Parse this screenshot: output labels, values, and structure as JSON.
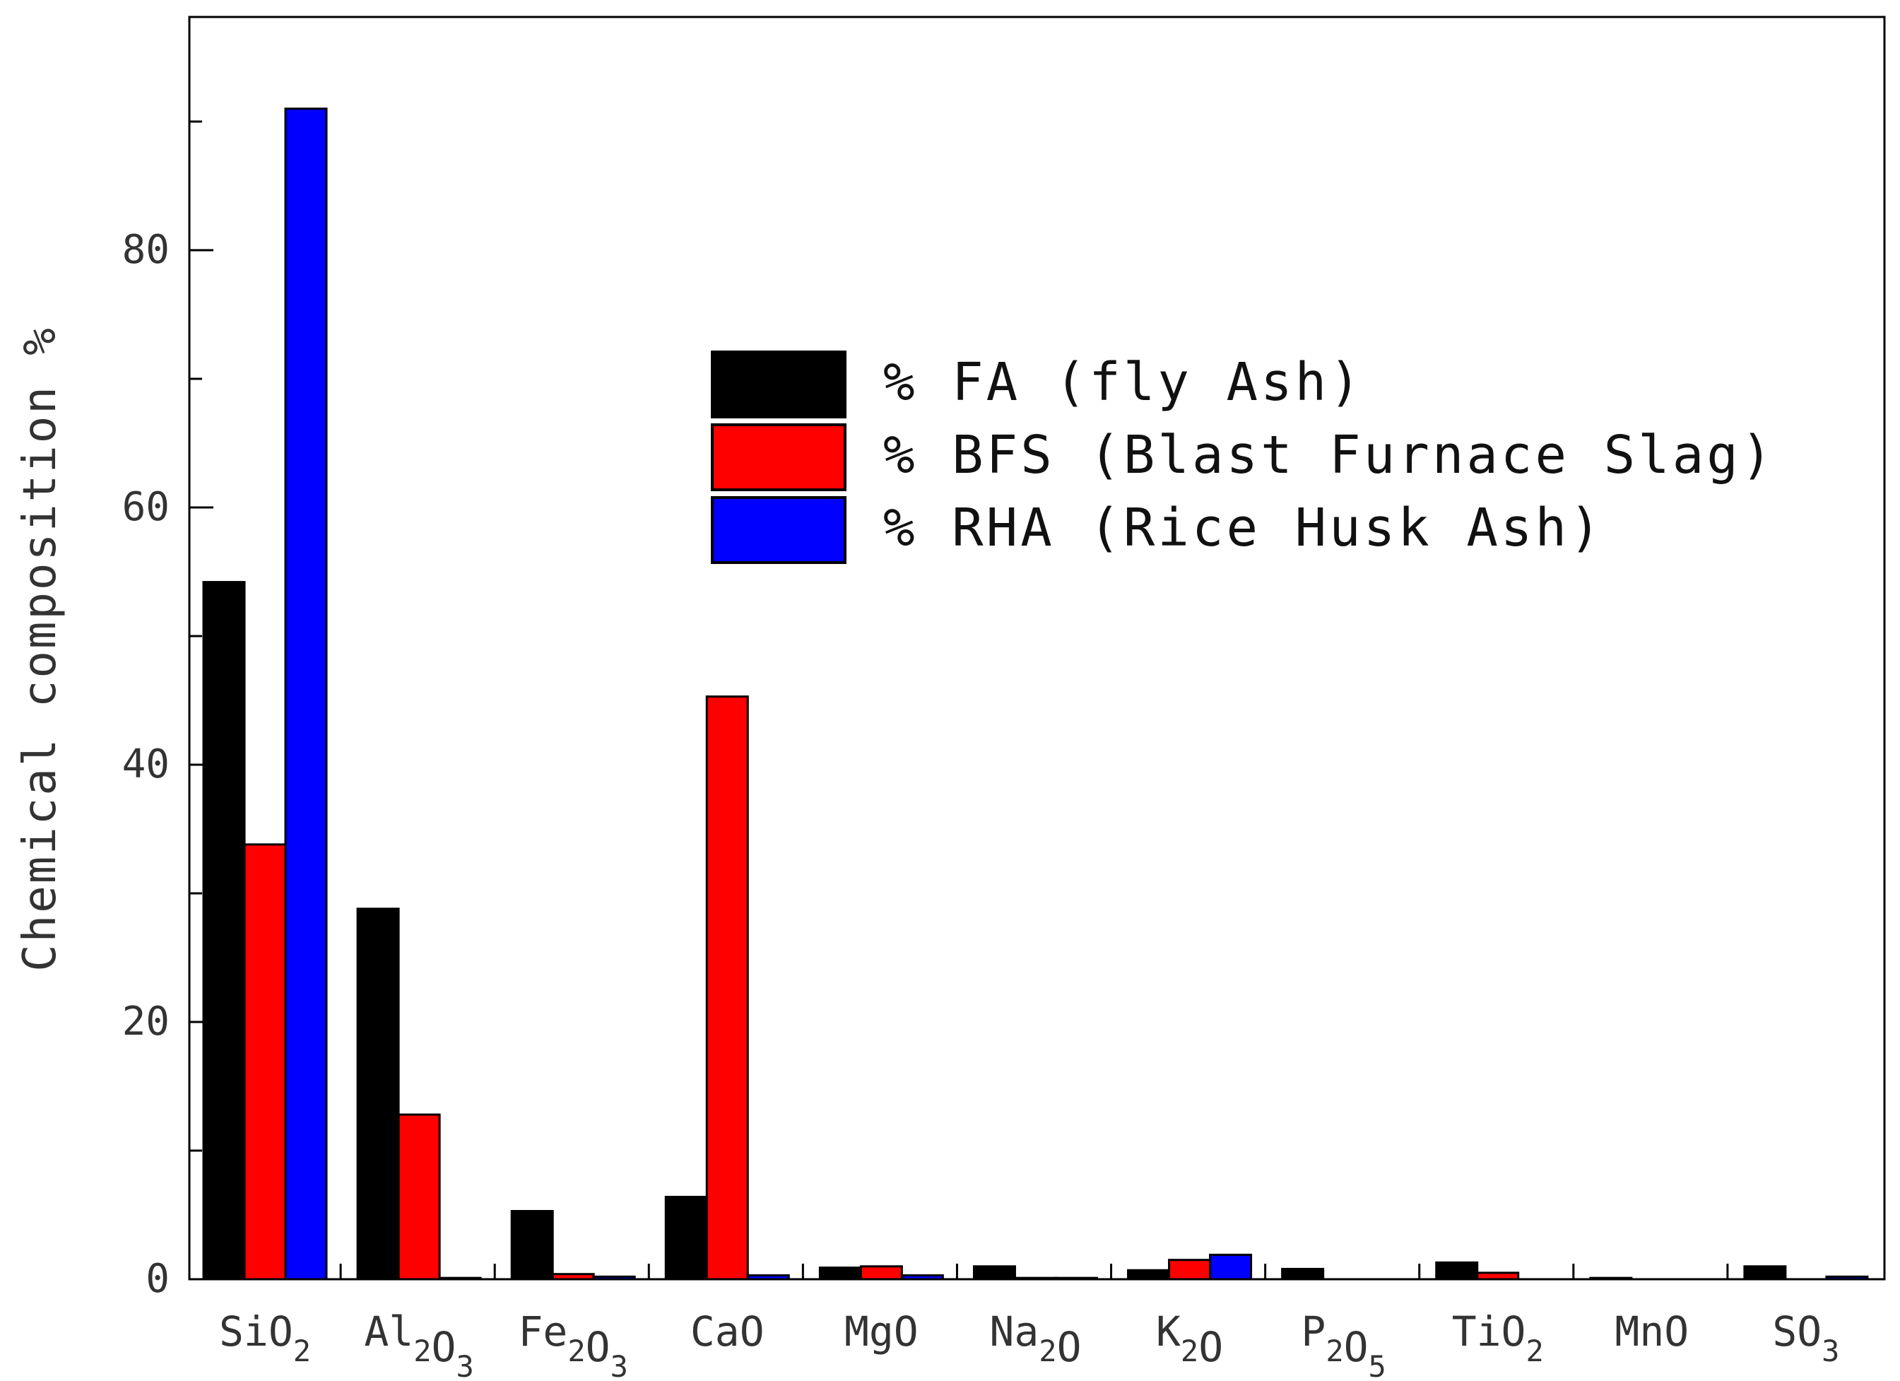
{
  "chart_data": {
    "type": "bar",
    "title": "",
    "xlabel": "",
    "ylabel": "Chemical composition %",
    "ylim": [
      0,
      95
    ],
    "yticks": [
      0,
      20,
      40,
      60,
      80
    ],
    "grid": false,
    "legend_position": "top-right",
    "categories": [
      {
        "base": "SiO",
        "parts": [
          [
            "Si",
            ""
          ],
          [
            "O",
            "2"
          ]
        ],
        "text": "SiO2"
      },
      {
        "text": "Al2O3",
        "parts": [
          [
            "Al",
            "2"
          ],
          [
            "O",
            "3"
          ]
        ]
      },
      {
        "text": "Fe2O3",
        "parts": [
          [
            "Fe",
            "2"
          ],
          [
            "O",
            "3"
          ]
        ]
      },
      {
        "text": "CaO",
        "parts": [
          [
            "CaO",
            ""
          ]
        ]
      },
      {
        "text": "MgO",
        "parts": [
          [
            "MgO",
            ""
          ]
        ]
      },
      {
        "text": "Na2O",
        "parts": [
          [
            "Na",
            "2"
          ],
          [
            "O",
            ""
          ]
        ]
      },
      {
        "text": "K2O",
        "parts": [
          [
            "K",
            "2"
          ],
          [
            "O",
            ""
          ]
        ]
      },
      {
        "text": "P2O5",
        "parts": [
          [
            "P",
            "2"
          ],
          [
            "O",
            "5"
          ]
        ]
      },
      {
        "text": "TiO2",
        "parts": [
          [
            "TiO",
            "2"
          ]
        ]
      },
      {
        "text": "MnO",
        "parts": [
          [
            "MnO",
            ""
          ]
        ]
      },
      {
        "text": "SO3",
        "parts": [
          [
            "SO",
            "3"
          ]
        ]
      }
    ],
    "series": [
      {
        "name": "% FA (fly Ash)",
        "color": "#000000",
        "values": [
          54.2,
          28.8,
          5.3,
          6.4,
          0.9,
          1.0,
          0.7,
          0.8,
          1.3,
          0.1,
          1.0
        ]
      },
      {
        "name": "% BFS (Blast Furnace Slag)",
        "color": "#ff0000",
        "values": [
          33.8,
          12.8,
          0.4,
          45.3,
          1.0,
          0.1,
          1.5,
          0.0,
          0.5,
          0.0,
          0.0
        ]
      },
      {
        "name": "% RHA (Rice Husk Ash)",
        "color": "#0000ff",
        "values": [
          91.0,
          0.1,
          0.2,
          0.3,
          0.3,
          0.1,
          1.9,
          0.0,
          0.0,
          0.0,
          0.2
        ]
      }
    ]
  }
}
